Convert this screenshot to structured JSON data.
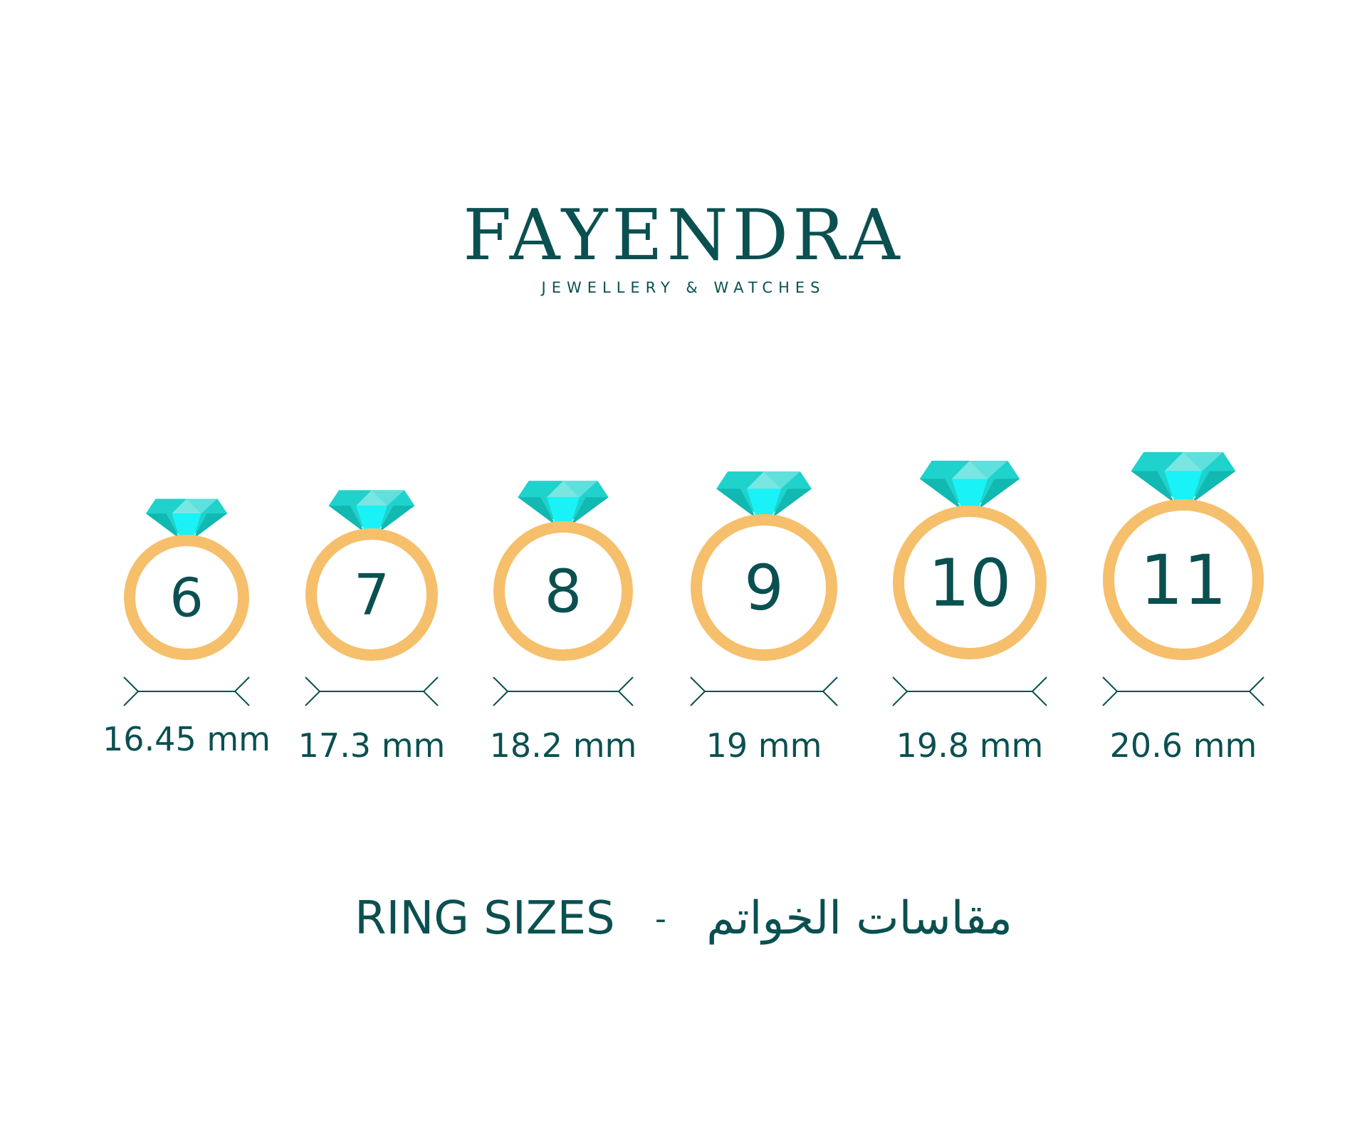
{
  "brand": {
    "name": "FAYENDRA",
    "tagline": "JEWELLERY & WATCHES"
  },
  "colors": {
    "text": "#0b5050",
    "band": "#f6bf6b",
    "gem_dark": "#12b8b2",
    "gem_mid": "#1fd2cc",
    "gem_light": "#79e6e2",
    "gem_core": "#19f3f8"
  },
  "rings": [
    {
      "size": "6",
      "diameter": "16.45 mm"
    },
    {
      "size": "7",
      "diameter": "17.3 mm"
    },
    {
      "size": "8",
      "diameter": "18.2 mm"
    },
    {
      "size": "9",
      "diameter": "19 mm"
    },
    {
      "size": "10",
      "diameter": "19.8 mm"
    },
    {
      "size": "11",
      "diameter": "20.6 mm"
    }
  ],
  "title": {
    "english": "RING SIZES",
    "separator": "-",
    "arabic": "مقاسات الخواتم"
  }
}
